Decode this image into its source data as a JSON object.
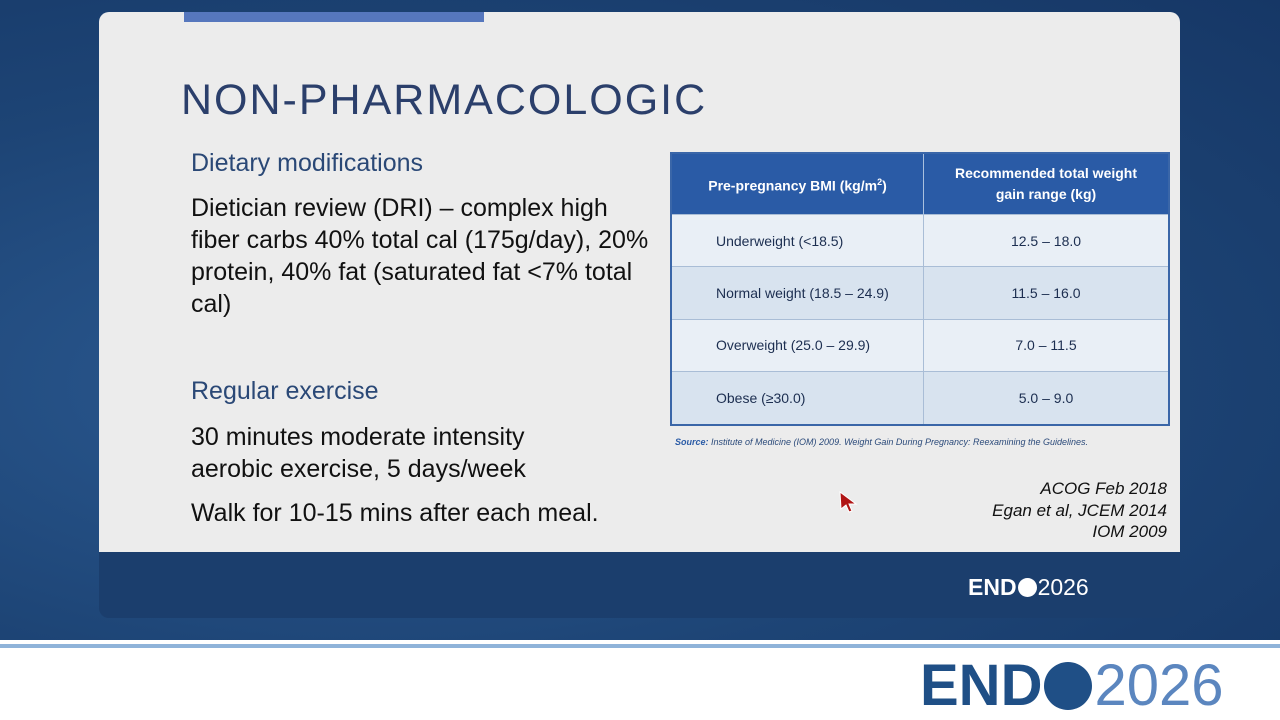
{
  "slide": {
    "title": "NON-PHARMACOLOGIC",
    "sections": [
      {
        "heading": "Dietary modifications",
        "paragraphs": [
          "Dietician review (DRI) – complex high fiber carbs 40% total cal (175g/day), 20% protein, 40% fat (saturated fat <7% total cal)"
        ]
      },
      {
        "heading": "Regular exercise",
        "paragraphs": [
          "30 minutes moderate intensity aerobic exercise, 5 days/week",
          "Walk for 10-15 mins after each meal."
        ]
      }
    ],
    "table": {
      "header": {
        "col1": {
          "text": "Pre-pregnancy BMI (kg/m",
          "sup": "2",
          "end": ")"
        },
        "col2": "Recommended total weight gain range (kg)"
      },
      "rows": [
        [
          "Underweight (<18.5)",
          "12.5 – 18.0"
        ],
        [
          "Normal weight (18.5 – 24.9)",
          "11.5 – 16.0"
        ],
        [
          "Overweight (25.0 – 29.9)",
          "7.0 – 11.5"
        ],
        [
          "Obese (≥30.0)",
          "5.0 – 9.0"
        ]
      ],
      "source": {
        "label": "Source:",
        "text": " Institute of Medicine (IOM) 2009. Weight Gain During Pregnancy: Reexamining the Guidelines."
      }
    },
    "references": [
      "ACOG Feb 2018",
      "Egan et al, JCEM 2014",
      "IOM 2009"
    ]
  },
  "logo": {
    "brand": "END",
    "year": "2026"
  }
}
